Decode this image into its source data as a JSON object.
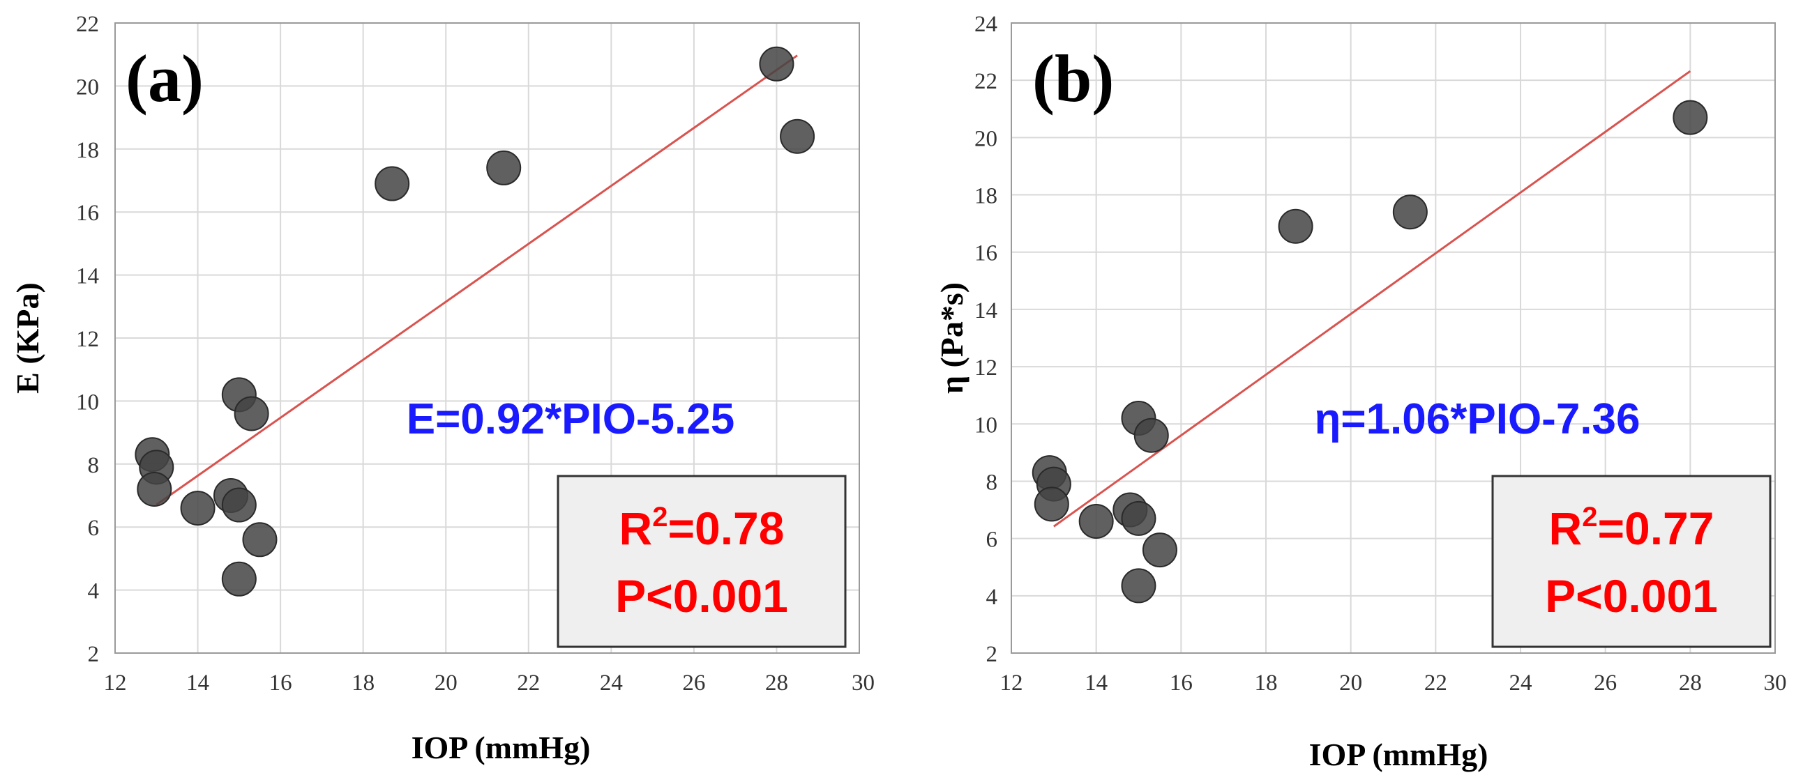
{
  "chart_data": [
    {
      "type": "scatter",
      "panel_label": "(a)",
      "xlabel": "IOP (mmHg)",
      "ylabel": "E (KPa)",
      "xlim": [
        12,
        30
      ],
      "ylim": [
        2,
        22
      ],
      "x_ticks": [
        "12",
        "14",
        "16",
        "18",
        "20",
        "22",
        "24",
        "26",
        "28",
        "30"
      ],
      "y_ticks": [
        "2",
        "4",
        "6",
        "8",
        "10",
        "12",
        "14",
        "16",
        "18",
        "20",
        "22"
      ],
      "grid": true,
      "points": [
        {
          "x": 12.9,
          "y": 8.3
        },
        {
          "x": 13.0,
          "y": 7.9
        },
        {
          "x": 12.95,
          "y": 7.2
        },
        {
          "x": 14.0,
          "y": 6.6
        },
        {
          "x": 14.8,
          "y": 7.0
        },
        {
          "x": 15.0,
          "y": 6.7
        },
        {
          "x": 15.0,
          "y": 10.2
        },
        {
          "x": 15.3,
          "y": 9.6
        },
        {
          "x": 15.5,
          "y": 5.6
        },
        {
          "x": 15.0,
          "y": 4.35
        },
        {
          "x": 18.7,
          "y": 16.9
        },
        {
          "x": 21.4,
          "y": 17.4
        },
        {
          "x": 28.0,
          "y": 20.7
        },
        {
          "x": 28.5,
          "y": 18.4
        }
      ],
      "fit_line": {
        "x_start": 13.0,
        "x_end": 28.5,
        "slope": 0.92,
        "intercept": -5.25,
        "color": "#d9534f"
      },
      "equation": "E=0.92*PIO-5.25",
      "equation_color": "#1a1aff",
      "stats": {
        "r2_prefix": "R",
        "r2_sup": "2",
        "r2_value": "=0.78",
        "p_value": "P<0.001",
        "color": "#ff0000"
      },
      "tick_fragment": "30"
    },
    {
      "type": "scatter",
      "panel_label": "(b)",
      "xlabel": "IOP (mmHg)",
      "ylabel": "η (Pa*s)",
      "xlim": [
        12,
        30
      ],
      "ylim": [
        2,
        24
      ],
      "x_ticks": [
        "12",
        "14",
        "16",
        "18",
        "20",
        "22",
        "24",
        "26",
        "28",
        "30"
      ],
      "y_ticks": [
        "2",
        "4",
        "6",
        "8",
        "10",
        "12",
        "14",
        "16",
        "18",
        "20",
        "22",
        "24"
      ],
      "grid": true,
      "points": [
        {
          "x": 12.9,
          "y": 8.3
        },
        {
          "x": 13.0,
          "y": 7.9
        },
        {
          "x": 12.95,
          "y": 7.2
        },
        {
          "x": 14.0,
          "y": 6.6
        },
        {
          "x": 14.8,
          "y": 7.0
        },
        {
          "x": 15.0,
          "y": 6.7
        },
        {
          "x": 15.0,
          "y": 10.2
        },
        {
          "x": 15.3,
          "y": 9.6
        },
        {
          "x": 15.5,
          "y": 5.6
        },
        {
          "x": 15.0,
          "y": 4.35
        },
        {
          "x": 18.7,
          "y": 16.9
        },
        {
          "x": 21.4,
          "y": 17.4
        },
        {
          "x": 28.0,
          "y": 20.7
        }
      ],
      "fit_line": {
        "x_start": 13.0,
        "x_end": 28.0,
        "slope": 1.06,
        "intercept": -7.36,
        "color": "#d9534f"
      },
      "equation": "η=1.06*PIO-7.36",
      "equation_color": "#1a1aff",
      "stats": {
        "r2_prefix": "R",
        "r2_sup": "2",
        "r2_value": "=0.77",
        "p_value": "P<0.001",
        "color": "#ff0000"
      }
    }
  ],
  "colors": {
    "grid": "#d9d9d9",
    "frame": "#9a9a9a",
    "marker_fill": "#444444",
    "marker_stroke": "#2a2a2a",
    "stats_box_fill": "#efefef"
  }
}
